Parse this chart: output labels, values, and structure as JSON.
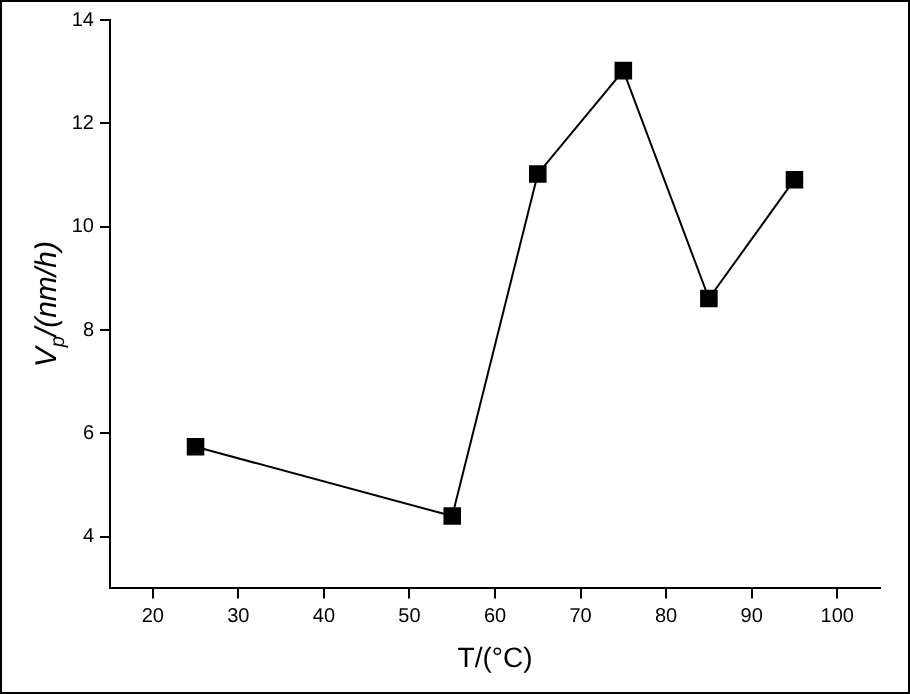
{
  "chart_data": {
    "type": "line",
    "xlabel": "T/(°C)",
    "ylabel": "V$_{p}$/(nm/h)",
    "x": [
      25,
      55,
      65,
      75,
      85,
      95
    ],
    "series": [
      {
        "color": "#000000",
        "values": [
          5.74,
          4.4,
          11.02,
          13.02,
          8.61,
          10.91
        ]
      }
    ],
    "xlim": [
      15,
      105
    ],
    "xticks": [
      20,
      30,
      40,
      50,
      60,
      70,
      80,
      90,
      100
    ],
    "ylim": [
      3,
      14
    ],
    "yticks": [
      4,
      6,
      8,
      10,
      12,
      14
    ],
    "marker": "square",
    "line_style": "solid",
    "grid": false,
    "legend": false
  }
}
